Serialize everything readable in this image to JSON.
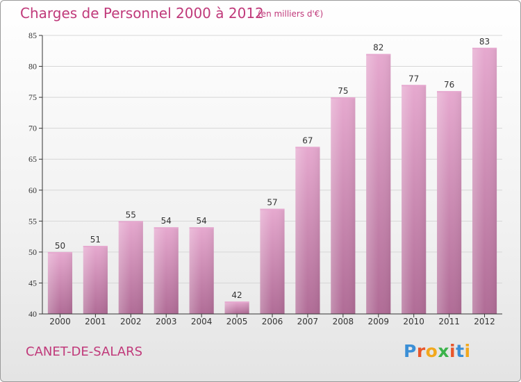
{
  "header": {
    "title": "Charges de Personnel 2000 à 2012",
    "subtitle": "(en milliers d'€)"
  },
  "footer": {
    "commune": "CANET-DE-SALARS",
    "logo": "Proxiti"
  },
  "colors": {
    "title": "#c0397a",
    "bar_light": "#e6a9cf",
    "bar_dark": "#b06c96",
    "axis": "#333333",
    "grid": "#d6d6d6"
  },
  "chart_data": {
    "type": "bar",
    "categories": [
      "2000",
      "2001",
      "2002",
      "2003",
      "2004",
      "2005",
      "2006",
      "2007",
      "2008",
      "2009",
      "2010",
      "2011",
      "2012"
    ],
    "values": [
      50,
      51,
      55,
      54,
      54,
      42,
      57,
      67,
      75,
      82,
      77,
      76,
      83
    ],
    "title": "Charges de Personnel 2000 à 2012",
    "xlabel": "",
    "ylabel": "",
    "ylim": [
      40,
      85
    ],
    "yticks": [
      40,
      45,
      50,
      55,
      60,
      65,
      70,
      75,
      80,
      85
    ],
    "grid": true,
    "data_labels": true
  }
}
